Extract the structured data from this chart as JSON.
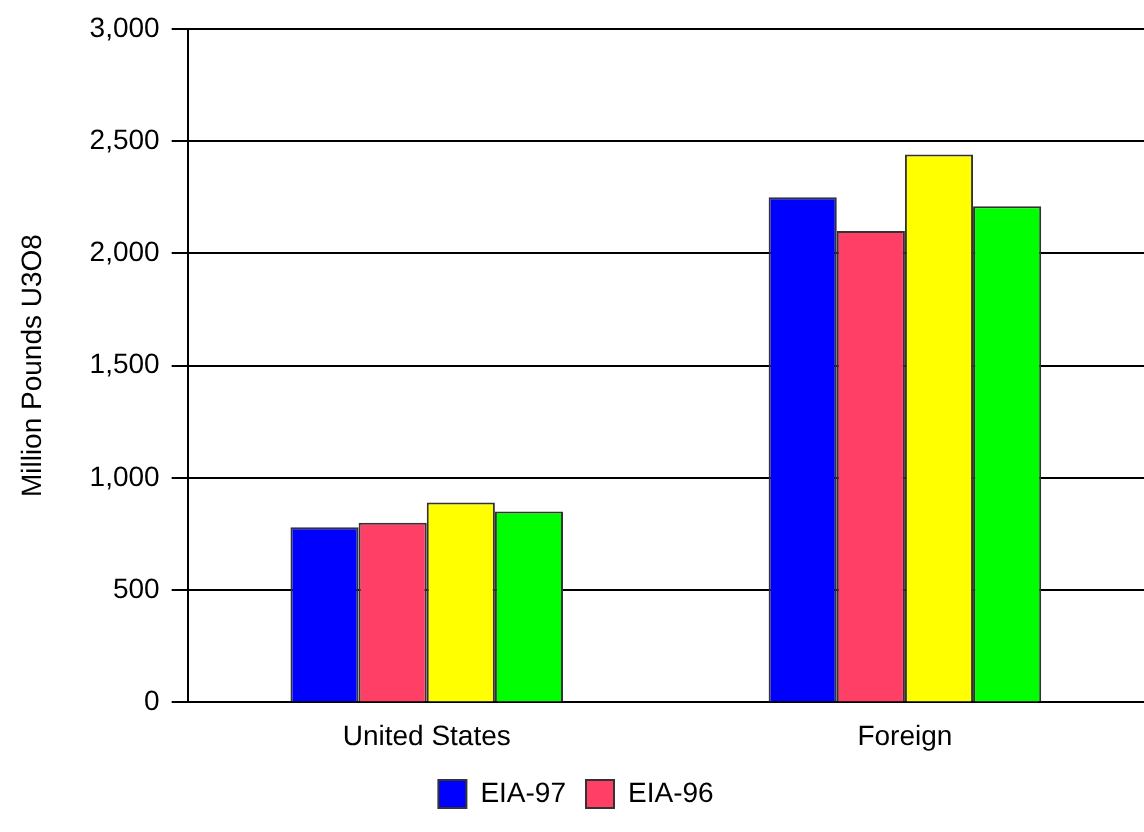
{
  "chart_data": {
    "type": "bar",
    "ylabel": "Million Pounds U3O8",
    "categories": [
      "United States",
      "Foreign"
    ],
    "series": [
      {
        "name": "EIA-97",
        "color": "#0000ff",
        "values": [
          780,
          2250
        ]
      },
      {
        "name": "EIA-96",
        "color": "#ff3f66",
        "values": [
          800,
          2100
        ]
      },
      {
        "color": "#ffff00",
        "values": [
          890,
          2440
        ]
      },
      {
        "color": "#00ff00",
        "values": [
          850,
          2210
        ]
      }
    ],
    "ylim": [
      0,
      3000
    ],
    "yticks": [
      {
        "value": 0,
        "label": "0"
      },
      {
        "value": 500,
        "label": "500"
      },
      {
        "value": 1000,
        "label": "1,000"
      },
      {
        "value": 1500,
        "label": "1,500"
      },
      {
        "value": 2000,
        "label": "2,000"
      },
      {
        "value": 2500,
        "label": "2,500"
      },
      {
        "value": 3000,
        "label": "3,000"
      }
    ],
    "grid": "y",
    "legend": "bottom"
  }
}
